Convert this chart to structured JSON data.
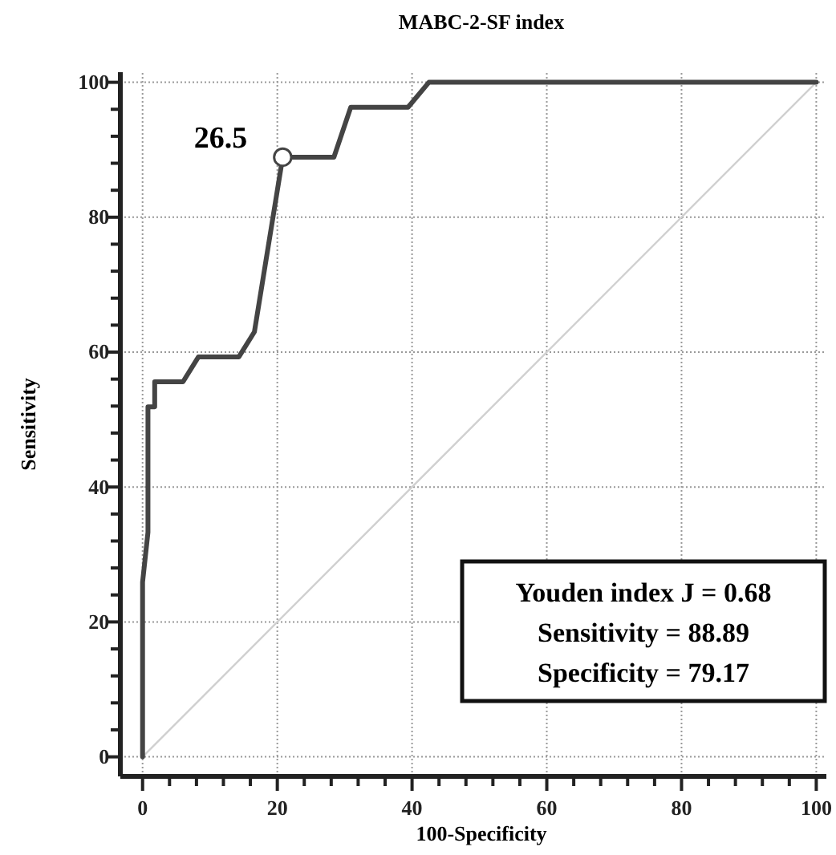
{
  "chart_data": {
    "type": "line",
    "title": "MABC-2-SF index",
    "xlabel": "100-Specificity",
    "ylabel": "Sensitivity",
    "xlim": [
      -3.3,
      101.5
    ],
    "ylim": [
      -2.9,
      101.5
    ],
    "xticks": [
      0,
      {
        "value": 4,
        "label": null
      },
      {
        "value": 8,
        "label": null
      },
      {
        "value": 12,
        "label": null
      },
      {
        "value": 16,
        "label": null
      },
      20,
      {
        "value": 24,
        "label": null
      },
      {
        "value": 28,
        "label": null
      },
      {
        "value": 32,
        "label": null
      },
      {
        "value": 36,
        "label": null
      },
      40,
      {
        "value": 44,
        "label": null
      },
      {
        "value": 48,
        "label": null
      },
      {
        "value": 52,
        "label": null
      },
      {
        "value": 56,
        "label": null
      },
      60,
      {
        "value": 64,
        "label": null
      },
      {
        "value": 68,
        "label": null
      },
      {
        "value": 72,
        "label": null
      },
      {
        "value": 76,
        "label": null
      },
      80,
      {
        "value": 84,
        "label": null
      },
      {
        "value": 88,
        "label": null
      },
      {
        "value": 92,
        "label": null
      },
      {
        "value": 96,
        "label": null
      },
      100
    ],
    "yticks": [
      0,
      {
        "value": 4,
        "label": null
      },
      {
        "value": 8,
        "label": null
      },
      {
        "value": 12,
        "label": null
      },
      {
        "value": 16,
        "label": null
      },
      20,
      {
        "value": 24,
        "label": null
      },
      {
        "value": 28,
        "label": null
      },
      {
        "value": 32,
        "label": null
      },
      {
        "value": 36,
        "label": null
      },
      40,
      {
        "value": 44,
        "label": null
      },
      {
        "value": 48,
        "label": null
      },
      {
        "value": 52,
        "label": null
      },
      {
        "value": 56,
        "label": null
      },
      60,
      {
        "value": 64,
        "label": null
      },
      {
        "value": 68,
        "label": null
      },
      {
        "value": 72,
        "label": null
      },
      {
        "value": 76,
        "label": null
      },
      80,
      {
        "value": 84,
        "label": null
      },
      {
        "value": 88,
        "label": null
      },
      {
        "value": 92,
        "label": null
      },
      {
        "value": 96,
        "label": null
      },
      100
    ],
    "grid": true,
    "series": [
      {
        "color": "#d0d0d0",
        "x": [
          0,
          100
        ],
        "values": [
          0,
          100
        ]
      },
      {
        "color": "#444444",
        "x": [
          0,
          0,
          0.8,
          0.8,
          1.8,
          1.8,
          6.0,
          8.3,
          14.3,
          16.6,
          20.8,
          28.4,
          30.9,
          39.4,
          42.5,
          100
        ],
        "values": [
          0,
          25.9,
          33.3,
          51.9,
          51.9,
          55.6,
          55.6,
          59.3,
          59.3,
          63.0,
          88.9,
          88.9,
          96.3,
          96.3,
          100,
          100
        ]
      },
      {
        "type": "scatter",
        "color": "#444444",
        "marker": "circle",
        "x": [
          20.8
        ],
        "values": [
          88.9
        ]
      }
    ],
    "annotations": [
      {
        "text": "26.5",
        "x": 20.8,
        "y": 88.9
      },
      "Youden index J = 0.68",
      "Sensitivity = 88.89",
      "Specificity = 79.17"
    ]
  }
}
